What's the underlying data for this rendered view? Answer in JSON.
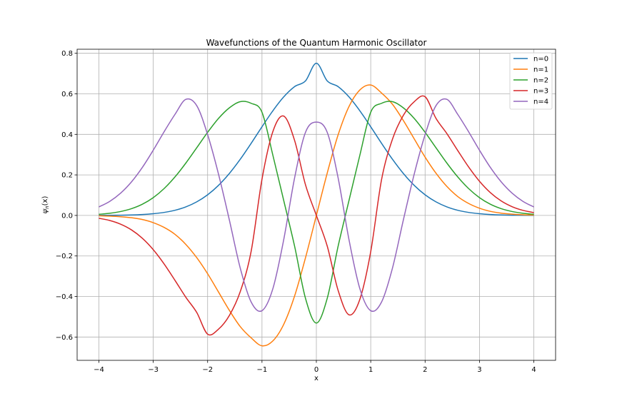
{
  "chart_data": {
    "type": "line",
    "title": "Wavefunctions of the Quantum Harmonic Oscillator",
    "xlabel": "x",
    "ylabel": "ψn(x)",
    "ylabel_main": "ψ",
    "ylabel_sub": "n",
    "ylabel_tail": "(x)",
    "xlim": [
      -4.4,
      4.4
    ],
    "ylim": [
      -0.715,
      0.82
    ],
    "grid": true,
    "legend_position": "top-right",
    "x_ticks": [
      -4,
      -3,
      -2,
      -1,
      0,
      1,
      2,
      3,
      4
    ],
    "x_tick_labels": [
      "−4",
      "−3",
      "−2",
      "−1",
      "0",
      "1",
      "2",
      "3",
      "4"
    ],
    "y_ticks": [
      -0.6,
      -0.4,
      -0.2,
      0.0,
      0.2,
      0.4,
      0.6,
      0.8
    ],
    "y_tick_labels": [
      "−0.6",
      "−0.4",
      "−0.2",
      "0.0",
      "0.2",
      "0.4",
      "0.6",
      "0.8"
    ],
    "x": [
      -4.0,
      -3.8,
      -3.6,
      -3.4,
      -3.2,
      -3.0,
      -2.8,
      -2.6,
      -2.4,
      -2.2,
      -2.0,
      -1.8,
      -1.6,
      -1.4,
      -1.2,
      -1.0,
      -0.8,
      -0.6,
      -0.4,
      -0.2,
      0.0,
      0.2,
      0.4,
      0.6,
      0.8,
      1.0,
      1.2,
      1.4,
      1.6,
      1.8,
      2.0,
      2.2,
      2.4,
      2.6,
      2.8,
      3.0,
      3.2,
      3.4,
      3.6,
      3.8,
      4.0
    ],
    "series": [
      {
        "name": "n=0",
        "color": "#1f77b4",
        "values": [
          0.0003,
          0.0006,
          0.0012,
          0.0023,
          0.0045,
          0.0084,
          0.0149,
          0.0254,
          0.0422,
          0.067,
          0.1018,
          0.1483,
          0.207,
          0.277,
          0.3554,
          0.4374,
          0.5163,
          0.5849,
          0.6357,
          0.6637,
          0.7511,
          0.6637,
          0.6357,
          0.5849,
          0.5163,
          0.4374,
          0.3554,
          0.277,
          0.207,
          0.1483,
          0.1018,
          0.067,
          0.0422,
          0.0254,
          0.0149,
          0.0084,
          0.0045,
          0.0023,
          0.0012,
          0.0006,
          0.0003
        ]
      },
      {
        "name": "n=1",
        "color": "#ff7f0e",
        "values": [
          -0.0017,
          -0.0033,
          -0.0063,
          -0.0113,
          -0.0202,
          -0.0356,
          -0.0591,
          -0.0933,
          -0.1432,
          -0.2084,
          -0.2878,
          -0.3777,
          -0.4683,
          -0.5485,
          -0.6039,
          -0.6434,
          -0.6191,
          -0.5374,
          -0.3974,
          -0.2091,
          0.0,
          0.2091,
          0.3974,
          0.5374,
          0.6191,
          0.6434,
          0.6039,
          0.5485,
          0.4683,
          0.3777,
          0.2878,
          0.2084,
          0.1432,
          0.0933,
          0.0591,
          0.0356,
          0.0202,
          0.0113,
          0.0063,
          0.0033,
          0.0017
        ]
      },
      {
        "name": "n=2",
        "color": "#2ca02c",
        "values": [
          0.0056,
          0.0106,
          0.0193,
          0.0333,
          0.0553,
          0.0878,
          0.1326,
          0.1901,
          0.2585,
          0.3338,
          0.4099,
          0.4785,
          0.5309,
          0.5613,
          0.5533,
          0.5092,
          0.2972,
          0.0734,
          -0.1522,
          -0.409,
          -0.5311,
          -0.409,
          -0.1522,
          0.0734,
          0.2972,
          0.5092,
          0.5533,
          0.5613,
          0.5309,
          0.4785,
          0.4099,
          0.3338,
          0.2585,
          0.1901,
          0.1326,
          0.0878,
          0.0553,
          0.0333,
          0.0193,
          0.0106,
          0.0056
        ]
      },
      {
        "name": "n=3",
        "color": "#d62728",
        "values": [
          -0.014,
          -0.025,
          -0.0432,
          -0.0714,
          -0.1126,
          -0.1687,
          -0.2393,
          -0.3204,
          -0.404,
          -0.4788,
          -0.5858,
          -0.5612,
          -0.4937,
          -0.3763,
          -0.1779,
          0.1786,
          0.4138,
          0.4903,
          0.3697,
          0.1512,
          0.0,
          -0.1512,
          -0.3697,
          -0.4903,
          -0.4138,
          -0.1786,
          0.1779,
          0.3763,
          0.4937,
          0.5612,
          0.5858,
          0.4788,
          0.404,
          0.3204,
          0.2393,
          0.1687,
          0.1126,
          0.0714,
          0.0432,
          0.025,
          0.014
        ]
      },
      {
        "name": "n=4",
        "color": "#9467bd",
        "values": [
          0.0418,
          0.0694,
          0.1098,
          0.1655,
          0.237,
          0.3219,
          0.413,
          0.4987,
          0.5727,
          0.5416,
          0.3989,
          0.2043,
          -0.0226,
          -0.2596,
          -0.4268,
          -0.4701,
          -0.3615,
          -0.1191,
          0.1854,
          0.4099,
          0.4606,
          0.4099,
          0.1854,
          -0.1191,
          -0.3615,
          -0.4701,
          -0.4268,
          -0.2596,
          -0.0226,
          0.2043,
          0.3989,
          0.5416,
          0.5727,
          0.4987,
          0.413,
          0.3219,
          0.237,
          0.1655,
          0.1098,
          0.0694,
          0.0418
        ]
      }
    ]
  }
}
